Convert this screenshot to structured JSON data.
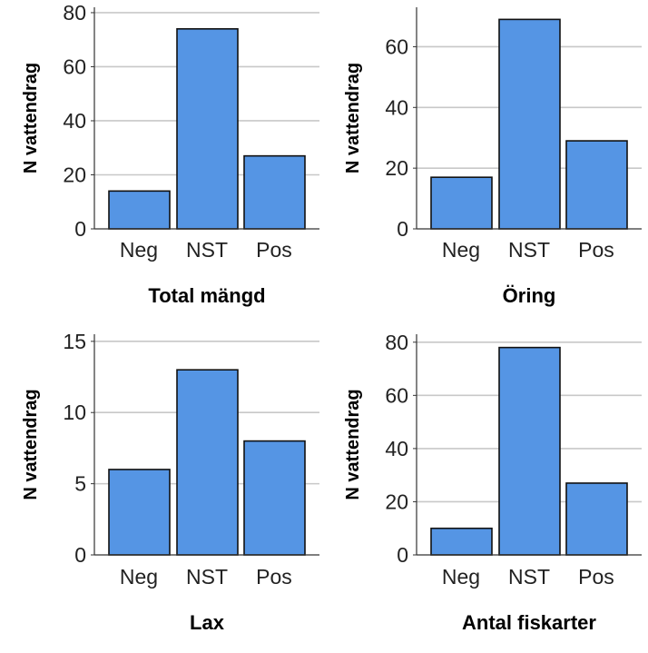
{
  "chart_data": [
    {
      "type": "bar",
      "categories": [
        "Neg",
        "NST",
        "Pos"
      ],
      "values": [
        14,
        74,
        27
      ],
      "xlabel": "Total mängd",
      "ylabel": "N vattendrag",
      "ylim": [
        0,
        82
      ],
      "yticks": [
        0,
        20,
        40,
        60,
        80
      ],
      "grid": true,
      "bar_color": "#5595e4"
    },
    {
      "type": "bar",
      "categories": [
        "Neg",
        "NST",
        "Pos"
      ],
      "values": [
        17,
        69,
        29
      ],
      "xlabel": "Öring",
      "ylabel": "N vattendrag",
      "ylim": [
        0,
        73
      ],
      "yticks": [
        0,
        20,
        40,
        60
      ],
      "grid": true,
      "bar_color": "#5595e4"
    },
    {
      "type": "bar",
      "categories": [
        "Neg",
        "NST",
        "Pos"
      ],
      "values": [
        6,
        13,
        8
      ],
      "xlabel": "Lax",
      "ylabel": "N vattendrag",
      "ylim": [
        0,
        15.5
      ],
      "yticks": [
        0,
        5,
        10,
        15
      ],
      "grid": true,
      "bar_color": "#5595e4"
    },
    {
      "type": "bar",
      "categories": [
        "Neg",
        "NST",
        "Pos"
      ],
      "values": [
        10,
        78,
        27
      ],
      "xlabel": "Antal fiskarter",
      "ylabel": "N vattendrag",
      "ylim": [
        0,
        83
      ],
      "yticks": [
        0,
        20,
        40,
        60,
        80
      ],
      "grid": true,
      "bar_color": "#5595e4"
    }
  ]
}
